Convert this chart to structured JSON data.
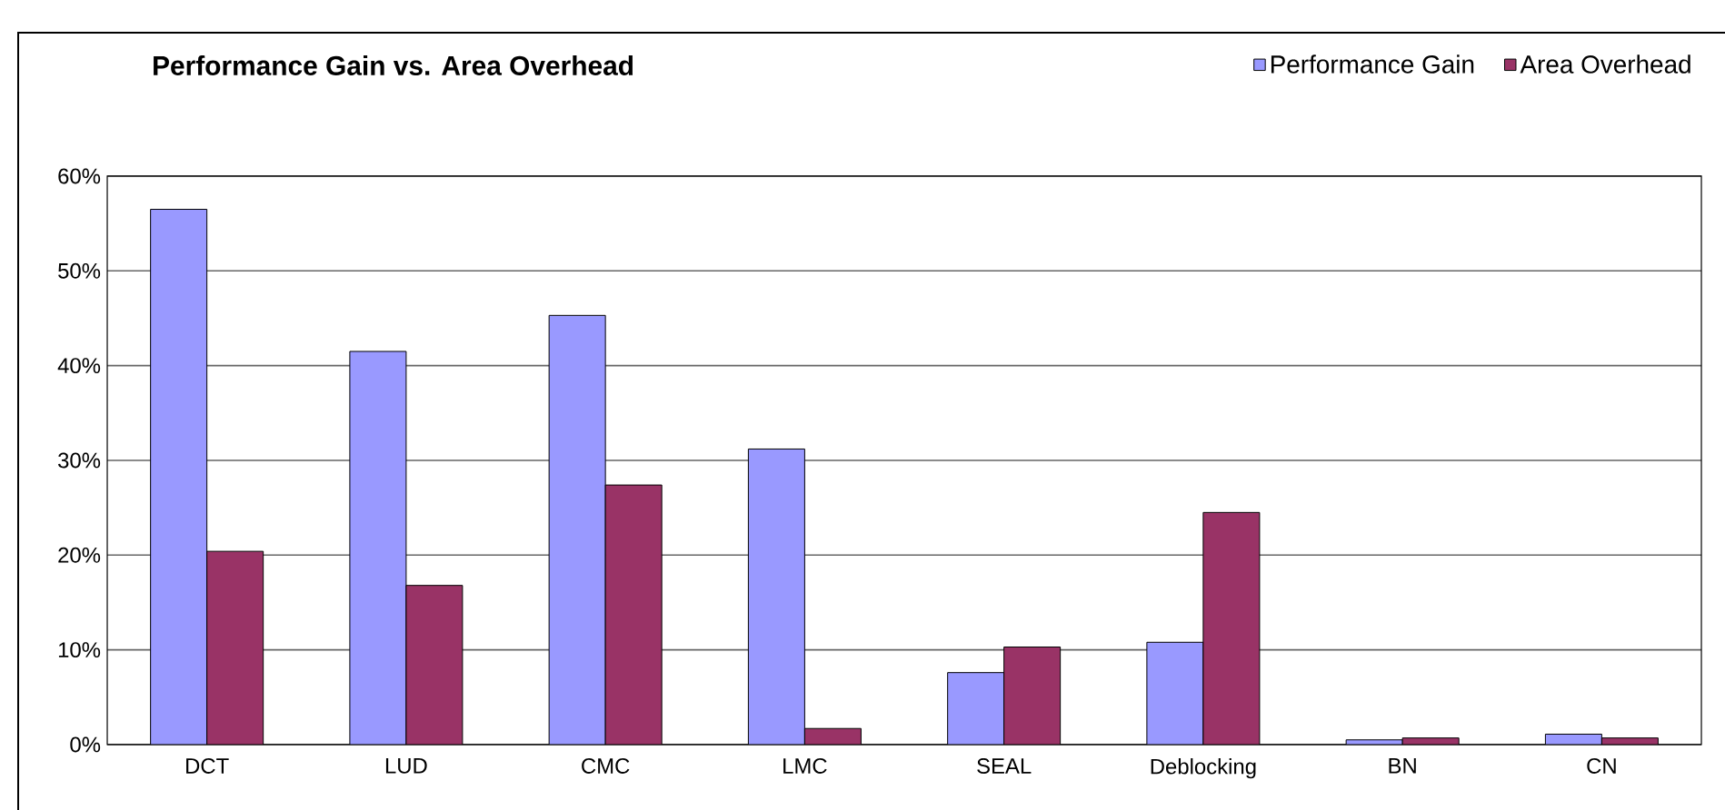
{
  "chart_data": {
    "type": "bar",
    "title": "Performance Gain vs. Area Overhead",
    "categories": [
      "DCT",
      "LUD",
      "CMC",
      "LMC",
      "SEAL",
      "Deblocking",
      "BN",
      "CN"
    ],
    "series": [
      {
        "name": "Performance Gain",
        "color": "#9999ff",
        "values": [
          56.5,
          41.5,
          45.3,
          31.2,
          7.6,
          10.8,
          0.5,
          1.1
        ]
      },
      {
        "name": "Area Overhead",
        "color": "#993366",
        "values": [
          20.4,
          16.8,
          27.4,
          1.7,
          10.3,
          24.5,
          0.7,
          0.7
        ]
      }
    ],
    "ylim": [
      0,
      60
    ],
    "yticks": [
      {
        "value": 0,
        "label": "0%"
      },
      {
        "value": 10,
        "label": "10%"
      },
      {
        "value": 20,
        "label": "20%"
      },
      {
        "value": 30,
        "label": "30%"
      },
      {
        "value": 40,
        "label": "40%"
      },
      {
        "value": 50,
        "label": "50%"
      },
      {
        "value": 60,
        "label": "60%"
      }
    ],
    "grid": "y",
    "legend": "top right"
  }
}
